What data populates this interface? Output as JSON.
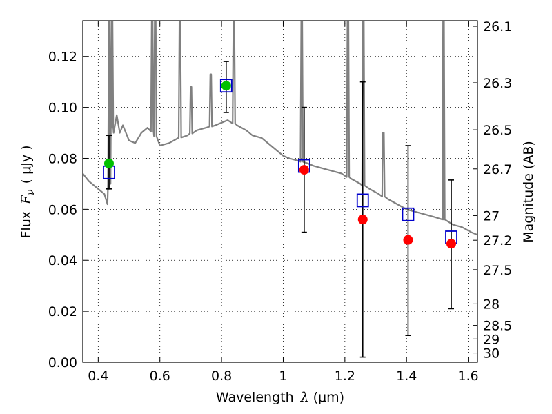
{
  "chart_data": {
    "type": "scatter",
    "xlabel_prefix": "Wavelength",
    "xlabel_symbol": "λ",
    "xlabel_unit": "(μm)",
    "ylabel_prefix": "Flux",
    "ylabel_symbol": "F",
    "ylabel_subscript": "ν",
    "ylabel_unit": "( μJy )",
    "y2label": "Magnitude (AB)",
    "xlim": [
      0.35,
      1.63
    ],
    "ylim": [
      0.0,
      0.134
    ],
    "grid": true,
    "x_ticks": [
      "0.4",
      "0.6",
      "0.8",
      "1",
      "1.2",
      "1.4",
      "1.6"
    ],
    "x_tick_values": [
      0.4,
      0.6,
      0.8,
      1.0,
      1.2,
      1.4,
      1.6
    ],
    "y_ticks": [
      "0.00",
      "0.02",
      "0.04",
      "0.06",
      "0.08",
      "0.10",
      "0.12"
    ],
    "y_tick_values": [
      0.0,
      0.02,
      0.04,
      0.06,
      0.08,
      0.1,
      0.12
    ],
    "y2_ticks": [
      "26.1",
      "26.3",
      "26.5",
      "26.7",
      "27",
      "27.2",
      "27.5",
      "28",
      "28.5",
      "29",
      "30"
    ],
    "y2_tick_values": [
      26.1,
      26.3,
      26.5,
      26.7,
      27.0,
      27.2,
      27.5,
      28.0,
      28.5,
      29.0,
      30.0
    ],
    "colors": {
      "model": "#808080",
      "model_points": "#0000cc",
      "detection": "#00c000",
      "measured": "#ff0000",
      "errorbar": "#000000"
    },
    "model_spectrum": {
      "x": [
        0.35,
        0.37,
        0.39,
        0.41,
        0.42,
        0.425,
        0.43,
        0.435,
        0.44,
        0.445,
        0.45,
        0.46,
        0.47,
        0.48,
        0.5,
        0.52,
        0.54,
        0.56,
        0.58,
        0.6,
        0.63,
        0.66,
        0.69,
        0.72,
        0.75,
        0.78,
        0.8,
        0.82,
        0.85,
        0.88,
        0.9,
        0.93,
        0.96,
        0.98,
        1.0,
        1.02,
        1.05,
        1.08,
        1.1,
        1.13,
        1.16,
        1.19,
        1.22,
        1.25,
        1.28,
        1.31,
        1.34,
        1.37,
        1.4,
        1.43,
        1.46,
        1.49,
        1.52,
        1.55,
        1.58,
        1.61,
        1.63
      ],
      "y": [
        0.074,
        0.071,
        0.069,
        0.067,
        0.066,
        0.064,
        0.062,
        0.068,
        0.078,
        0.092,
        0.09,
        0.097,
        0.09,
        0.093,
        0.087,
        0.086,
        0.09,
        0.092,
        0.09,
        0.085,
        0.086,
        0.088,
        0.089,
        0.091,
        0.092,
        0.093,
        0.094,
        0.095,
        0.093,
        0.091,
        0.089,
        0.088,
        0.085,
        0.083,
        0.081,
        0.08,
        0.079,
        0.078,
        0.077,
        0.076,
        0.075,
        0.074,
        0.072,
        0.07,
        0.068,
        0.066,
        0.064,
        0.062,
        0.06,
        0.059,
        0.058,
        0.057,
        0.056,
        0.054,
        0.053,
        0.051,
        0.05
      ]
    },
    "emission_lines": [
      {
        "x": 0.436,
        "peak": 0.134
      },
      {
        "x": 0.445,
        "peak": 0.134
      },
      {
        "x": 0.575,
        "peak": 0.134
      },
      {
        "x": 0.585,
        "peak": 0.134
      },
      {
        "x": 0.665,
        "peak": 0.134
      },
      {
        "x": 0.701,
        "peak": 0.108
      },
      {
        "x": 0.765,
        "peak": 0.113
      },
      {
        "x": 0.84,
        "peak": 0.134
      },
      {
        "x": 1.06,
        "peak": 0.134
      },
      {
        "x": 1.21,
        "peak": 0.134
      },
      {
        "x": 1.26,
        "peak": 0.134
      },
      {
        "x": 1.325,
        "peak": 0.09
      },
      {
        "x": 1.52,
        "peak": 0.134
      }
    ],
    "model_points": {
      "x": [
        0.435,
        0.815,
        1.068,
        1.258,
        1.405,
        1.545
      ],
      "y": [
        0.0745,
        0.1085,
        0.077,
        0.0635,
        0.058,
        0.049
      ]
    },
    "detections": {
      "x": [
        0.435,
        0.815
      ],
      "y": [
        0.078,
        0.1085
      ],
      "yerr_low": [
        0.068,
        0.098
      ],
      "yerr_high": [
        0.089,
        0.118
      ]
    },
    "measurements": {
      "x": [
        1.068,
        1.258,
        1.405,
        1.545
      ],
      "y": [
        0.0755,
        0.056,
        0.048,
        0.0465
      ],
      "yerr_low": [
        0.051,
        0.002,
        0.0105,
        0.021
      ],
      "yerr_high": [
        0.1,
        0.11,
        0.085,
        0.0715
      ]
    }
  }
}
